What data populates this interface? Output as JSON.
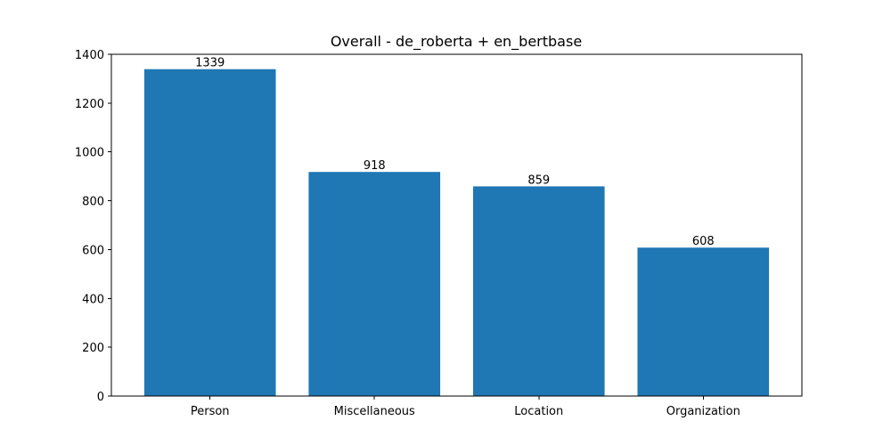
{
  "chart_data": {
    "type": "bar",
    "title": "Overall - de_roberta + en_bertbase",
    "xlabel": "",
    "ylabel": "",
    "categories": [
      "Person",
      "Miscellaneous",
      "Location",
      "Organization"
    ],
    "values": [
      1339,
      918,
      859,
      608
    ],
    "value_labels": [
      "1339",
      "918",
      "859",
      "608"
    ],
    "ylim": [
      0,
      1400
    ],
    "yticks": [
      0,
      200,
      400,
      600,
      800,
      1000,
      1200,
      1400
    ],
    "ytick_labels": [
      "0",
      "200",
      "400",
      "600",
      "800",
      "1000",
      "1200",
      "1400"
    ],
    "grid": false,
    "bar_color": "#1f77b4"
  }
}
